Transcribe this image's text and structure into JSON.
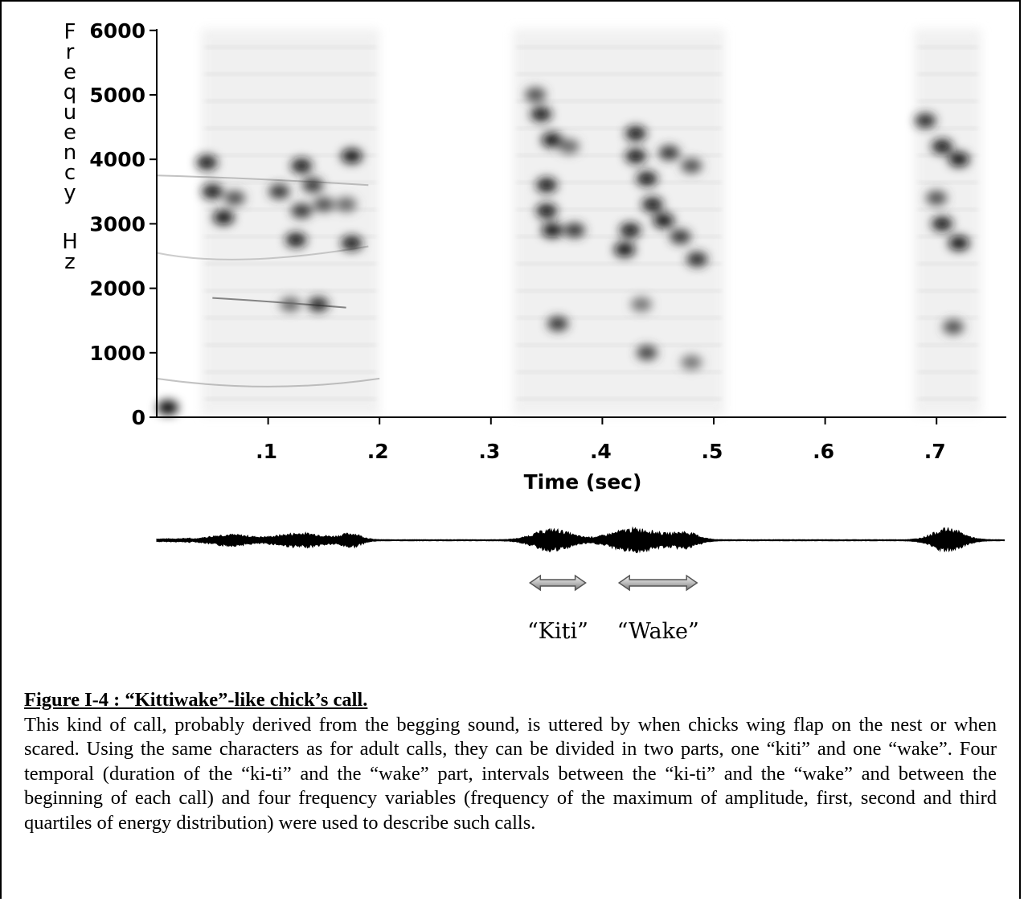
{
  "chart_data": {
    "type": "heatmap",
    "subtype": "spectrogram with oscillogram",
    "ylabel": "Frequency Hz",
    "xlabel": "Time (sec)",
    "y_ticks": [
      "0",
      "1000",
      "2000",
      "3000",
      "4000",
      "5000",
      "6000"
    ],
    "x_ticks": [
      ".1",
      ".2",
      ".3",
      ".4",
      ".5",
      ".6",
      ".7"
    ],
    "x_tick_values": [
      0.1,
      0.2,
      0.3,
      0.4,
      0.5,
      0.6,
      0.7
    ],
    "ylim": [
      0,
      6000
    ],
    "xlim": [
      0,
      0.81
    ],
    "calls": [
      {
        "start": 0.04,
        "end": 0.2
      },
      {
        "start": 0.32,
        "end": 0.51
      },
      {
        "start": 0.68,
        "end": 0.74
      }
    ],
    "energy_blobs": [
      {
        "t": 0.045,
        "f": 3950,
        "level": 0.9
      },
      {
        "t": 0.05,
        "f": 3500,
        "level": 0.9
      },
      {
        "t": 0.06,
        "f": 3100,
        "level": 0.95
      },
      {
        "t": 0.07,
        "f": 3400,
        "level": 0.7
      },
      {
        "t": 0.11,
        "f": 3500,
        "level": 0.8
      },
      {
        "t": 0.13,
        "f": 3900,
        "level": 0.9
      },
      {
        "t": 0.13,
        "f": 3200,
        "level": 0.8
      },
      {
        "t": 0.125,
        "f": 2750,
        "level": 0.9
      },
      {
        "t": 0.14,
        "f": 3600,
        "level": 0.8
      },
      {
        "t": 0.15,
        "f": 3300,
        "level": 0.7
      },
      {
        "t": 0.175,
        "f": 4050,
        "level": 0.95
      },
      {
        "t": 0.17,
        "f": 3300,
        "level": 0.6
      },
      {
        "t": 0.175,
        "f": 2700,
        "level": 0.9
      },
      {
        "t": 0.145,
        "f": 1750,
        "level": 0.85
      },
      {
        "t": 0.12,
        "f": 1750,
        "level": 0.6
      },
      {
        "t": 0.34,
        "f": 5000,
        "level": 0.7
      },
      {
        "t": 0.345,
        "f": 4700,
        "level": 0.9
      },
      {
        "t": 0.355,
        "f": 4300,
        "level": 0.95
      },
      {
        "t": 0.35,
        "f": 3600,
        "level": 0.9
      },
      {
        "t": 0.35,
        "f": 3200,
        "level": 0.9
      },
      {
        "t": 0.355,
        "f": 2900,
        "level": 0.95
      },
      {
        "t": 0.375,
        "f": 2900,
        "level": 0.8
      },
      {
        "t": 0.37,
        "f": 4200,
        "level": 0.6
      },
      {
        "t": 0.36,
        "f": 1450,
        "level": 0.8
      },
      {
        "t": 0.42,
        "f": 2600,
        "level": 0.95
      },
      {
        "t": 0.425,
        "f": 2900,
        "level": 0.9
      },
      {
        "t": 0.43,
        "f": 4400,
        "level": 0.9
      },
      {
        "t": 0.43,
        "f": 4050,
        "level": 0.9
      },
      {
        "t": 0.44,
        "f": 3700,
        "level": 0.9
      },
      {
        "t": 0.445,
        "f": 3300,
        "level": 0.9
      },
      {
        "t": 0.455,
        "f": 3050,
        "level": 0.95
      },
      {
        "t": 0.46,
        "f": 4100,
        "level": 0.8
      },
      {
        "t": 0.47,
        "f": 2800,
        "level": 0.8
      },
      {
        "t": 0.48,
        "f": 3900,
        "level": 0.7
      },
      {
        "t": 0.485,
        "f": 2450,
        "level": 0.85
      },
      {
        "t": 0.44,
        "f": 1000,
        "level": 0.75
      },
      {
        "t": 0.435,
        "f": 1750,
        "level": 0.55
      },
      {
        "t": 0.48,
        "f": 850,
        "level": 0.55
      },
      {
        "t": 0.69,
        "f": 4600,
        "level": 0.85
      },
      {
        "t": 0.705,
        "f": 4200,
        "level": 0.9
      },
      {
        "t": 0.72,
        "f": 4000,
        "level": 0.95
      },
      {
        "t": 0.7,
        "f": 3400,
        "level": 0.7
      },
      {
        "t": 0.705,
        "f": 3000,
        "level": 0.9
      },
      {
        "t": 0.72,
        "f": 2700,
        "level": 0.95
      },
      {
        "t": 0.715,
        "f": 1400,
        "level": 0.7
      },
      {
        "t": 0.01,
        "f": 150,
        "level": 1.0
      }
    ],
    "syllable_labels": [
      {
        "text": "“Kiti”",
        "start": 0.335,
        "end": 0.385
      },
      {
        "text": "“Wake”",
        "start": 0.415,
        "end": 0.485
      }
    ]
  },
  "caption": {
    "title": "Figure I-4 : “Kittiwake”-like chick’s call.",
    "body": "This kind of call, probably derived from the begging sound, is uttered by when chicks wing flap on the nest or when scared. Using the same characters as for adult calls, they can be divided in two parts, one “kiti” and one “wake”. Four temporal (duration of the “ki-ti” and the “wake” part, intervals between the “ki-ti” and the “wake” and between the beginning of each call) and four frequency variables (frequency of the maximum of amplitude, first, second and third quartiles of energy distribution) were used to describe such calls."
  },
  "colors": {
    "ink": "#000000",
    "arrow_fill": "#cfcfcf",
    "arrow_stroke": "#555555"
  }
}
